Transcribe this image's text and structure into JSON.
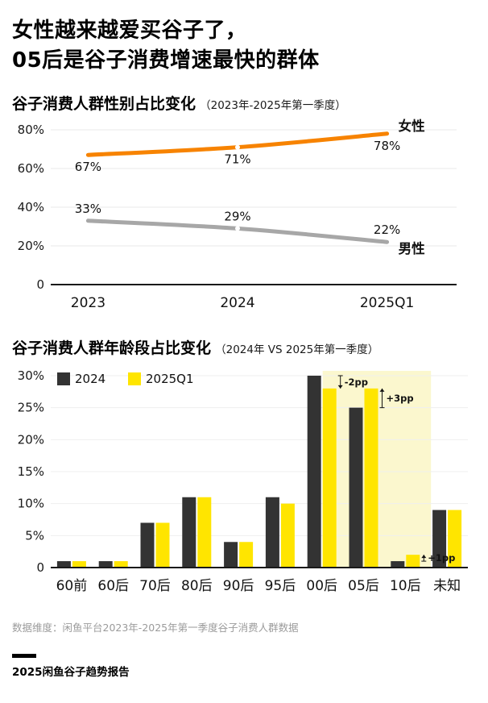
{
  "header": {
    "title_line1": "女性越来越爱买谷子了，",
    "title_line2": "05后是谷子消费增速最快的群体"
  },
  "gender_section": {
    "title": "谷子消费人群性别占比变化",
    "subtitle": "（2023年-2025年第一季度）"
  },
  "age_section": {
    "title": "谷子消费人群年龄段占比变化",
    "subtitle": "（2024年 VS 2025年第一季度）"
  },
  "footer": {
    "source": "数据维度：闲鱼平台2023年-2025年第一季度谷子消费人群数据",
    "brand": "2025闲鱼谷子趋势报告"
  },
  "colors": {
    "female_line": "#F78300",
    "male_line": "#A7A7A7",
    "bar_2024": "#333333",
    "bar_2025": "#FFE500",
    "highlight": "#FBF7CE",
    "axis": "#1a1a1a",
    "grid": "#e9e9e9"
  },
  "chart_data": [
    {
      "type": "line",
      "title": "谷子消费人群性别占比变化（2023年-2025年第一季度）",
      "x": [
        "2023",
        "2024",
        "2025Q1"
      ],
      "series": [
        {
          "name": "女性",
          "values": [
            67,
            71,
            78
          ],
          "color": "#F78300",
          "value_labels": "below"
        },
        {
          "name": "男性",
          "values": [
            33,
            29,
            22
          ],
          "color": "#A7A7A7",
          "value_labels": "above"
        }
      ],
      "ylim": [
        0,
        80
      ],
      "yticks": [
        0,
        20,
        40,
        60,
        80
      ],
      "ytick_labels": [
        "0",
        "20%",
        "40%",
        "60%",
        "80%"
      ],
      "grid": true,
      "value_suffix": "%"
    },
    {
      "type": "bar",
      "title": "谷子消费人群年龄段占比变化（2024年 VS 2025年第一季度）",
      "categories": [
        "60前",
        "60后",
        "70后",
        "80后",
        "90后",
        "95后",
        "00后",
        "05后",
        "10后",
        "未知"
      ],
      "series": [
        {
          "name": "2024",
          "values": [
            1,
            1,
            7,
            11,
            4,
            11,
            30,
            25,
            1,
            9
          ],
          "color": "#333333"
        },
        {
          "name": "2025Q1",
          "values": [
            1,
            1,
            7,
            11,
            4,
            10,
            28,
            28,
            2,
            9
          ],
          "color": "#FFE500"
        }
      ],
      "ylim": [
        0,
        30
      ],
      "yticks": [
        0,
        5,
        10,
        15,
        20,
        25,
        30
      ],
      "ytick_labels": [
        "0",
        "5%",
        "10%",
        "15%",
        "20%",
        "25%",
        "30%"
      ],
      "legend_position": "top-left",
      "grid": true,
      "highlight": {
        "start_index": 6,
        "end_index": 8,
        "color": "#FBF7CE"
      },
      "annotations": [
        {
          "category_index": 6,
          "text": "-2pp",
          "direction": "down"
        },
        {
          "category_index": 7,
          "text": "+3pp",
          "direction": "up"
        },
        {
          "category_index": 8,
          "text": "+1pp",
          "direction": "up"
        }
      ]
    }
  ]
}
